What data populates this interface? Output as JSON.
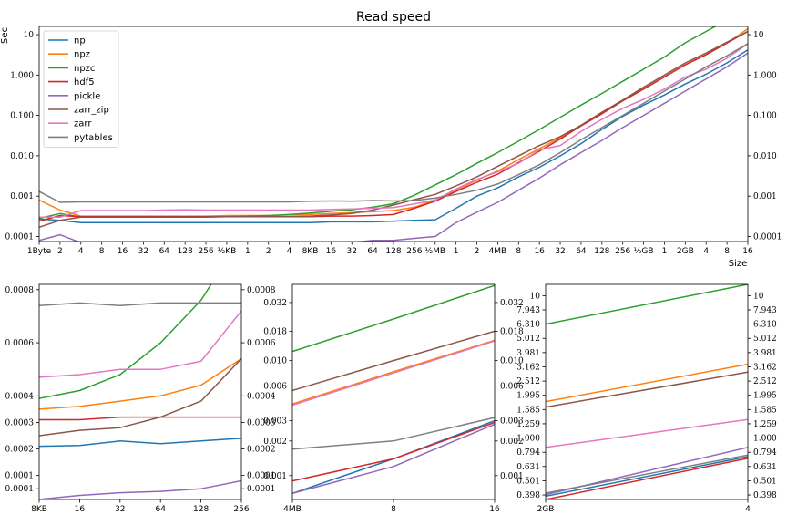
{
  "chart_data": [
    {
      "type": "line",
      "title": "Read speed",
      "xlabel": "Size",
      "ylabel": "Sec",
      "yscale": "log",
      "grid": false,
      "legend_position": "upper-left",
      "x_tick_labels": [
        "1Byte",
        "2",
        "4",
        "8",
        "16",
        "32",
        "64",
        "128",
        "256",
        "½KB",
        "1",
        "2",
        "4",
        "8KB",
        "16",
        "32",
        "64",
        "128",
        "256",
        "½MB",
        "1",
        "2",
        "4MB",
        "8",
        "16",
        "32",
        "64",
        "128",
        "256",
        "½GB",
        "1",
        "2GB",
        "4",
        "8",
        "16"
      ],
      "y_tick_labels": [
        "0.0001",
        "0.001",
        "0.010",
        "0.100",
        "1.000",
        "10"
      ],
      "y_tick_values": [
        0.0001,
        0.001,
        0.01,
        0.1,
        1,
        10
      ],
      "series": [
        {
          "name": "np",
          "color": "#1f77b4",
          "values": [
            0.00027,
            0.00025,
            0.00022,
            0.00022,
            0.00022,
            0.00022,
            0.00022,
            0.00022,
            0.00022,
            0.00022,
            0.00022,
            0.00022,
            0.00022,
            0.00022,
            0.00023,
            0.00023,
            0.00023,
            0.00024,
            0.00025,
            0.00026,
            0.0005,
            0.001,
            0.0016,
            0.003,
            0.0052,
            0.01,
            0.02,
            0.045,
            0.095,
            0.18,
            0.32,
            0.6,
            1.05,
            2.0,
            4.2
          ]
        },
        {
          "name": "npz",
          "color": "#ff7f0e",
          "values": [
            0.0008,
            0.00045,
            0.00032,
            0.00032,
            0.00032,
            0.00032,
            0.00032,
            0.00032,
            0.00032,
            0.00033,
            0.00033,
            0.00033,
            0.00034,
            0.00035,
            0.00037,
            0.00039,
            0.00041,
            0.00044,
            0.00053,
            0.0008,
            0.0014,
            0.0025,
            0.0042,
            0.008,
            0.015,
            0.028,
            0.055,
            0.11,
            0.23,
            0.45,
            0.9,
            1.8,
            3.2,
            6.2,
            14
          ]
        },
        {
          "name": "npzc",
          "color": "#2ca02c",
          "values": [
            0.00028,
            0.00037,
            0.0003,
            0.0003,
            0.0003,
            0.0003,
            0.0003,
            0.0003,
            0.00031,
            0.00031,
            0.00032,
            0.00033,
            0.00035,
            0.00038,
            0.00042,
            0.00046,
            0.00053,
            0.00065,
            0.00105,
            0.0019,
            0.0034,
            0.0065,
            0.012,
            0.023,
            0.045,
            0.09,
            0.18,
            0.35,
            0.7,
            1.4,
            2.8,
            6.3,
            12,
            23,
            48
          ]
        },
        {
          "name": "hdf5",
          "color": "#d62728",
          "values": [
            0.00024,
            0.00033,
            0.00031,
            0.00031,
            0.00031,
            0.00031,
            0.00031,
            0.00031,
            0.00031,
            0.00031,
            0.00031,
            0.00031,
            0.00031,
            0.00031,
            0.00032,
            0.00032,
            0.00033,
            0.00035,
            0.0005,
            0.00075,
            0.0013,
            0.0022,
            0.0035,
            0.0068,
            0.013,
            0.026,
            0.055,
            0.11,
            0.23,
            0.45,
            0.9,
            1.8,
            3.2,
            6.2,
            12
          ]
        },
        {
          "name": "pickle",
          "color": "#9467bd",
          "values": [
            8e-05,
            0.00011,
            7e-05,
            6e-05,
            6e-05,
            6e-05,
            6e-05,
            6e-05,
            6e-05,
            6e-05,
            6e-05,
            6e-05,
            6e-05,
            6e-05,
            7e-05,
            7e-05,
            8e-05,
            8e-05,
            9e-05,
            0.0001,
            0.00022,
            0.0004,
            0.0007,
            0.0014,
            0.0028,
            0.006,
            0.012,
            0.024,
            0.05,
            0.1,
            0.2,
            0.4,
            0.8,
            1.6,
            3.5
          ]
        },
        {
          "name": "zarr_zip",
          "color": "#8c564b",
          "values": [
            0.00017,
            0.00025,
            0.0003,
            0.0003,
            0.0003,
            0.0003,
            0.0003,
            0.0003,
            0.0003,
            0.00031,
            0.00031,
            0.00031,
            0.00031,
            0.00032,
            0.00034,
            0.00037,
            0.00045,
            0.0006,
            0.00082,
            0.0011,
            0.0018,
            0.003,
            0.0055,
            0.01,
            0.018,
            0.03,
            0.057,
            0.12,
            0.24,
            0.5,
            1.0,
            2.0,
            3.5,
            6.5,
            12
          ]
        },
        {
          "name": "zarr",
          "color": "#e377c2",
          "values": [
            0.0003,
            0.0003,
            0.00044,
            0.00044,
            0.00044,
            0.00044,
            0.00045,
            0.00046,
            0.00045,
            0.00045,
            0.00045,
            0.00045,
            0.00045,
            0.00045,
            0.00047,
            0.00048,
            0.0005,
            0.00052,
            0.00064,
            0.0008,
            0.0015,
            0.0026,
            0.004,
            0.0065,
            0.014,
            0.018,
            0.04,
            0.08,
            0.15,
            0.25,
            0.45,
            0.9,
            1.4,
            2.6,
            6
          ]
        },
        {
          "name": "pytables",
          "color": "#7f7f7f",
          "values": [
            0.0013,
            0.0007,
            0.00072,
            0.00072,
            0.00072,
            0.00072,
            0.00072,
            0.00072,
            0.00072,
            0.00072,
            0.00072,
            0.00072,
            0.00072,
            0.00075,
            0.00076,
            0.00075,
            0.00078,
            0.00076,
            0.00078,
            0.0009,
            0.0011,
            0.0014,
            0.002,
            0.0034,
            0.006,
            0.012,
            0.025,
            0.05,
            0.1,
            0.2,
            0.4,
            0.8,
            1.6,
            3.0,
            6
          ]
        }
      ]
    },
    {
      "type": "line",
      "x_tick_labels": [
        "8KB",
        "16",
        "32",
        "64",
        "128",
        "256"
      ],
      "y_tick_labels": [
        "0.0001",
        "0.0001",
        "0.0002",
        "0.0003",
        "0.0004",
        "0.0006",
        "0.0008"
      ],
      "y_tick_values": [
        5e-05,
        0.0001,
        0.0002,
        0.0003,
        0.0004,
        0.0006,
        0.0008
      ],
      "series": [
        {
          "name": "np",
          "color": "#1f77b4",
          "values": [
            0.00021,
            0.000213,
            0.00023,
            0.00022,
            0.00023,
            0.00024
          ]
        },
        {
          "name": "npz",
          "color": "#ff7f0e",
          "values": [
            0.00035,
            0.00036,
            0.00038,
            0.0004,
            0.00044,
            0.00054
          ]
        },
        {
          "name": "npzc",
          "color": "#2ca02c",
          "values": [
            0.00039,
            0.00042,
            0.00048,
            0.0006,
            0.00076,
            0.001
          ]
        },
        {
          "name": "hdf5",
          "color": "#d62728",
          "values": [
            0.00031,
            0.00031,
            0.00032,
            0.00032,
            0.00032,
            0.00032
          ]
        },
        {
          "name": "pickle",
          "color": "#9467bd",
          "values": [
            1e-05,
            2.5e-05,
            3.5e-05,
            4e-05,
            5e-05,
            8e-05
          ]
        },
        {
          "name": "zarr_zip",
          "color": "#8c564b",
          "values": [
            0.00025,
            0.00027,
            0.00028,
            0.00032,
            0.00038,
            0.00054
          ]
        },
        {
          "name": "zarr",
          "color": "#e377c2",
          "values": [
            0.00047,
            0.00048,
            0.0005,
            0.0005,
            0.00053,
            0.00072
          ]
        },
        {
          "name": "pytables",
          "color": "#7f7f7f",
          "values": [
            0.00074,
            0.00075,
            0.00074,
            0.00075,
            0.00075,
            0.00075
          ]
        }
      ]
    },
    {
      "type": "line",
      "x_tick_labels": [
        "4MB",
        "8",
        "16"
      ],
      "y_tick_labels": [
        "0.001",
        "0.002",
        "0.003",
        "0.006",
        "0.010",
        "0.018",
        "0.032"
      ],
      "y_tick_values": [
        0.001,
        0.002,
        0.003,
        0.006,
        0.01,
        0.018,
        0.032
      ],
      "series": [
        {
          "name": "np",
          "color": "#1f77b4",
          "values": [
            0.0007,
            0.0014,
            0.003
          ]
        },
        {
          "name": "npz",
          "color": "#ff7f0e",
          "values": [
            0.0042,
            0.008,
            0.015
          ]
        },
        {
          "name": "npzc",
          "color": "#2ca02c",
          "values": [
            0.012,
            0.023,
            0.045
          ]
        },
        {
          "name": "hdf5",
          "color": "#d62728",
          "values": [
            0.0009,
            0.0014,
            0.0029
          ]
        },
        {
          "name": "pickle",
          "color": "#9467bd",
          "values": [
            0.0007,
            0.0012,
            0.0028
          ]
        },
        {
          "name": "zarr_zip",
          "color": "#8c564b",
          "values": [
            0.0055,
            0.01,
            0.018
          ]
        },
        {
          "name": "zarr",
          "color": "#e377c2",
          "values": [
            0.0041,
            0.0078,
            0.0148
          ]
        },
        {
          "name": "pytables",
          "color": "#7f7f7f",
          "values": [
            0.0017,
            0.002,
            0.0032
          ]
        }
      ]
    },
    {
      "type": "line",
      "x_tick_labels": [
        "2GB",
        "4"
      ],
      "y_tick_labels": [
        "0.398",
        "0.501",
        "0.631",
        "0.794",
        "1.000",
        "1.259",
        "1.585",
        "1.995",
        "2.512",
        "3.162",
        "3.981",
        "5.012",
        "6.310",
        "7.943",
        "10"
      ],
      "y_tick_values": [
        0.398,
        0.501,
        0.631,
        0.794,
        1.0,
        1.259,
        1.585,
        1.995,
        2.512,
        3.162,
        3.981,
        5.012,
        6.31,
        7.943,
        10
      ],
      "series": [
        {
          "name": "np",
          "color": "#1f77b4",
          "values": [
            0.39,
            0.74
          ]
        },
        {
          "name": "npz",
          "color": "#ff7f0e",
          "values": [
            1.8,
            3.3
          ]
        },
        {
          "name": "npzc",
          "color": "#2ca02c",
          "values": [
            6.3,
            12
          ]
        },
        {
          "name": "hdf5",
          "color": "#d62728",
          "values": [
            0.37,
            0.72
          ]
        },
        {
          "name": "pickle",
          "color": "#9467bd",
          "values": [
            0.4,
            0.86
          ]
        },
        {
          "name": "zarr_zip",
          "color": "#8c564b",
          "values": [
            1.65,
            2.9
          ]
        },
        {
          "name": "zarr",
          "color": "#e377c2",
          "values": [
            0.86,
            1.35
          ]
        },
        {
          "name": "pytables",
          "color": "#7f7f7f",
          "values": [
            0.41,
            0.76
          ]
        }
      ]
    }
  ]
}
